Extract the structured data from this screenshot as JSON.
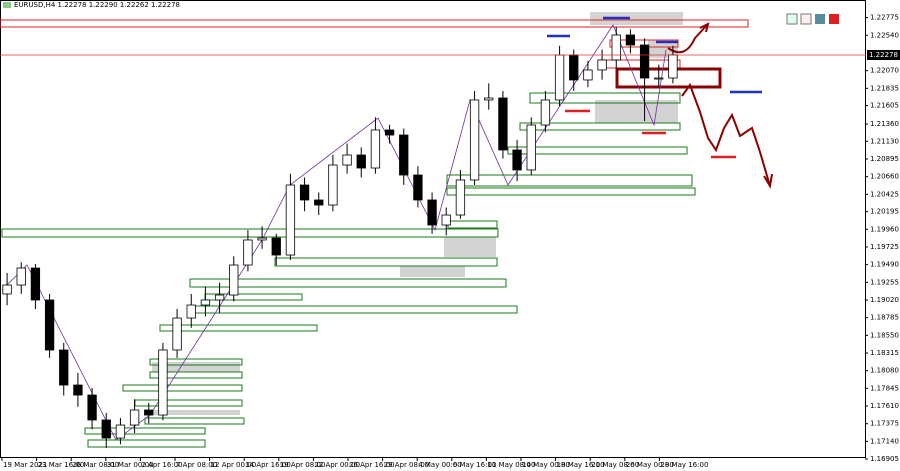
{
  "chart_data": {
    "type": "candlestick",
    "title": "EURUSD,H4  1.22278 1.22290 1.22262 1.22278",
    "bid": 1.22278,
    "ylim": [
      1.16799,
      1.22903
    ],
    "yticks": [
      {
        "value": 1.22775,
        "label": "1.22775"
      },
      {
        "value": 1.2254,
        "label": "1.22540"
      },
      {
        "value": 1.2207,
        "label": "1.22070"
      },
      {
        "value": 1.21835,
        "label": "1.21835"
      },
      {
        "value": 1.21605,
        "label": "1.21605"
      },
      {
        "value": 1.2136,
        "label": "1.21360"
      },
      {
        "value": 1.2113,
        "label": "1.21130"
      },
      {
        "value": 1.20895,
        "label": "1.20895"
      },
      {
        "value": 1.2066,
        "label": "1.20660"
      },
      {
        "value": 1.20425,
        "label": "1.20425"
      },
      {
        "value": 1.20195,
        "label": "1.20195"
      },
      {
        "value": 1.1996,
        "label": "1.19960"
      },
      {
        "value": 1.19725,
        "label": "1.19725"
      },
      {
        "value": 1.1949,
        "label": "1.19490"
      },
      {
        "value": 1.19255,
        "label": "1.19255"
      },
      {
        "value": 1.1902,
        "label": "1.19020"
      },
      {
        "value": 1.18785,
        "label": "1.18785"
      },
      {
        "value": 1.1855,
        "label": "1.18550"
      },
      {
        "value": 1.18315,
        "label": "1.18315"
      },
      {
        "value": 1.1808,
        "label": "1.18080"
      },
      {
        "value": 1.17845,
        "label": "1.17845"
      },
      {
        "value": 1.1761,
        "label": "1.17610"
      },
      {
        "value": 1.17375,
        "label": "1.17375"
      },
      {
        "value": 1.1714,
        "label": "1.17140"
      },
      {
        "value": 1.16905,
        "label": "1.16905"
      }
    ],
    "time_labels": [
      "19 Mar 2021",
      "23 Mar 16:00",
      "26 Mar 08:00",
      "31 Mar 00:00",
      "2 Apr 16:00",
      "7 Apr 08:00",
      "12 Apr 00:00",
      "14 Apr 16:00",
      "19 Apr 08:00",
      "22 Apr 00:00",
      "26 Apr 16:00",
      "29 Apr 08:00",
      "4 May 00:00",
      "6 May 16:00",
      "11 May 08:00",
      "14 May 00:00",
      "18 May 16:00",
      "21 May 08:00",
      "26 May 00:00",
      "28 May 16:00"
    ],
    "open": [
      1.191,
      1.19219,
      1.19445,
      1.1902,
      1.18355,
      1.17889,
      1.17756,
      1.17424,
      1.17184,
      1.17357,
      1.17557,
      1.1749,
      1.18355,
      1.1878,
      1.18953,
      1.1902,
      1.19086,
      1.19485,
      1.19818,
      1.19844,
      1.19618,
      1.20549,
      1.2035,
      1.20283,
      1.20815,
      1.20948,
      1.20775,
      1.21281,
      1.21214,
      1.20682,
      1.2035,
      1.20017,
      1.2015,
      1.20616,
      1.2168,
      1.21706,
      1.21015,
      1.20749,
      1.21347,
      1.2168,
      1.22278,
      1.21946,
      1.22079,
      1.22212,
      1.22544,
      1.22411,
      1.21972,
      1.21972
    ],
    "high": [
      1.1938,
      1.1952,
      1.195,
      1.191,
      1.1845,
      1.1805,
      1.1785,
      1.1752,
      1.1745,
      1.177,
      1.1765,
      1.1845,
      1.189,
      1.191,
      1.192,
      1.1925,
      1.196,
      1.1995,
      1.2,
      1.199,
      1.207,
      1.2065,
      1.2045,
      1.2095,
      1.211,
      1.2105,
      1.2145,
      1.2135,
      1.213,
      1.208,
      1.2045,
      1.2025,
      1.2075,
      1.218,
      1.219,
      1.218,
      1.2115,
      1.2145,
      1.218,
      1.224,
      1.2235,
      1.222,
      1.2235,
      1.2265,
      1.2262,
      1.225,
      1.2215,
      1.224
    ],
    "low": [
      1.1895,
      1.191,
      1.189,
      1.1825,
      1.1775,
      1.176,
      1.173,
      1.1705,
      1.171,
      1.1725,
      1.1738,
      1.1742,
      1.1825,
      1.1865,
      1.188,
      1.1885,
      1.19,
      1.194,
      1.197,
      1.1948,
      1.1955,
      1.202,
      1.2015,
      1.202,
      1.207,
      1.2065,
      1.207,
      1.211,
      1.2055,
      1.2025,
      1.199,
      1.1988,
      1.201,
      1.2055,
      1.2155,
      1.209,
      1.206,
      1.2068,
      1.2125,
      1.216,
      1.218,
      1.2185,
      1.2195,
      1.221,
      1.223,
      1.214,
      1.2185,
      1.219
    ],
    "close": [
      1.19219,
      1.19445,
      1.1902,
      1.18355,
      1.17889,
      1.17756,
      1.17424,
      1.17184,
      1.17357,
      1.17557,
      1.1749,
      1.18355,
      1.1878,
      1.18953,
      1.1902,
      1.19086,
      1.19485,
      1.19818,
      1.19844,
      1.19618,
      1.20549,
      1.2035,
      1.20283,
      1.20815,
      1.20948,
      1.20775,
      1.21281,
      1.21214,
      1.20682,
      1.2035,
      1.20017,
      1.2015,
      1.20616,
      1.2168,
      1.21706,
      1.21015,
      1.20749,
      1.21347,
      1.2168,
      1.22278,
      1.21946,
      1.22079,
      1.22212,
      1.22544,
      1.22411,
      1.21972,
      1.21972,
      1.22278
    ],
    "up_color": "#ffffff",
    "down_color": "#000000",
    "bid_color": "#e03030"
  }
}
